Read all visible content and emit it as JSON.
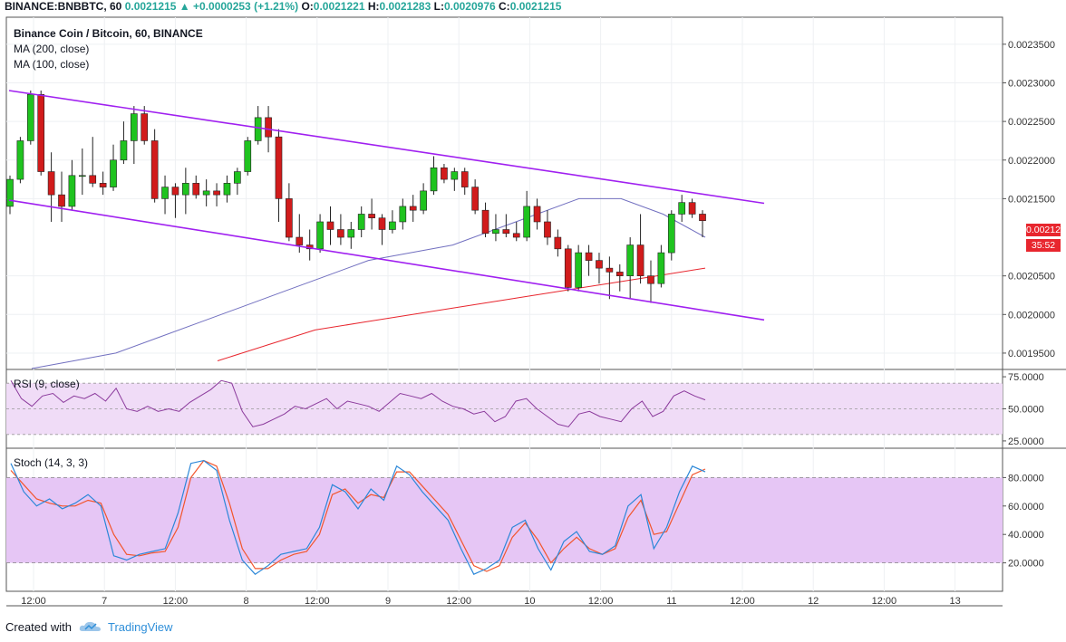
{
  "header": {
    "symbol": "BINANCE:BNBBTC, 60",
    "last": "0.0021215",
    "change_arrow": "▲",
    "change": "+0.0000253 (+1.21%)",
    "o_label": "O:",
    "o_val": "0.0021221",
    "h_label": "H:",
    "h_val": "0.0021283",
    "l_label": "L:",
    "l_val": "0.0020976",
    "c_label": "C:",
    "c_val": "0.0021215"
  },
  "legend": {
    "title": "Binance Coin / Bitcoin, 60, BINANCE",
    "ma200": "MA (200, close)",
    "ma100": "MA (100, close)",
    "rsi": "RSI (9, close)",
    "stoch": "Stoch (14, 3, 3)"
  },
  "price_tag": {
    "price": "0.0021215",
    "countdown": "35:52"
  },
  "footer": {
    "created_with": "Created with",
    "brand": "TradingView",
    "logo_icon": "tradingview-cloud-icon"
  },
  "colors": {
    "up": "#1fc31f",
    "down": "#d11b1b",
    "channel": "#a020f0",
    "ma100": "#7270c0",
    "ma200": "#e8262e",
    "rsi_line": "#8b3a9c",
    "rsi_band": "#f0dcf7",
    "stoch_band": "#e6c6f5",
    "stoch_k": "#2b87d8",
    "stoch_d": "#f2552c",
    "header_green": "#26a69a",
    "brand_blue": "#2f8fd9"
  },
  "chart_data": [
    {
      "type": "candlestick",
      "title": "Binance Coin / Bitcoin, 60, BINANCE",
      "x_tick_labels": [
        "12:00",
        "7",
        "12:00",
        "8",
        "12:00",
        "9",
        "12:00",
        "10",
        "12:00",
        "11",
        "12:00",
        "12",
        "12:00",
        "13"
      ],
      "y_tick_labels": [
        "0.0023500",
        "0.0023000",
        "0.0022500",
        "0.0022000",
        "0.0021500",
        "0.0020500",
        "0.0020000",
        "0.0019500"
      ],
      "ylim": [
        0.00193,
        0.002385
      ],
      "grid": true,
      "candles_approx": [
        [
          0.00214,
          0.00218,
          0.00213,
          0.002175
        ],
        [
          0.002175,
          0.00223,
          0.00217,
          0.002225
        ],
        [
          0.002225,
          0.00229,
          0.00222,
          0.002285
        ],
        [
          0.002285,
          0.00229,
          0.00218,
          0.002185
        ],
        [
          0.002185,
          0.00221,
          0.00212,
          0.002155
        ],
        [
          0.002155,
          0.002185,
          0.00212,
          0.00214
        ],
        [
          0.00214,
          0.0022,
          0.002135,
          0.00218
        ],
        [
          0.00218,
          0.002215,
          0.002155,
          0.00218
        ],
        [
          0.00218,
          0.00223,
          0.002165,
          0.00217
        ],
        [
          0.00217,
          0.002185,
          0.002155,
          0.002165
        ],
        [
          0.002165,
          0.00222,
          0.00216,
          0.0022
        ],
        [
          0.0022,
          0.00225,
          0.002195,
          0.002225
        ],
        [
          0.002225,
          0.00227,
          0.002195,
          0.00226
        ],
        [
          0.00226,
          0.00227,
          0.00222,
          0.002225
        ],
        [
          0.002225,
          0.00224,
          0.002145,
          0.00215
        ],
        [
          0.00215,
          0.00218,
          0.00213,
          0.002165
        ],
        [
          0.002165,
          0.00217,
          0.002125,
          0.002155
        ],
        [
          0.002155,
          0.00219,
          0.00213,
          0.00217
        ],
        [
          0.00217,
          0.00218,
          0.00215,
          0.002155
        ],
        [
          0.002155,
          0.002175,
          0.00214,
          0.00216
        ],
        [
          0.00216,
          0.00217,
          0.00214,
          0.002155
        ],
        [
          0.002155,
          0.00218,
          0.002145,
          0.00217
        ],
        [
          0.00217,
          0.00219,
          0.002155,
          0.002185
        ],
        [
          0.002185,
          0.00223,
          0.00218,
          0.002225
        ],
        [
          0.002225,
          0.00227,
          0.00222,
          0.002255
        ],
        [
          0.002255,
          0.00227,
          0.00221,
          0.00223
        ],
        [
          0.00223,
          0.00224,
          0.00212,
          0.00215
        ],
        [
          0.00215,
          0.00217,
          0.002095,
          0.0021
        ],
        [
          0.0021,
          0.00213,
          0.00208,
          0.00209
        ],
        [
          0.00209,
          0.00211,
          0.00207,
          0.002085
        ],
        [
          0.002085,
          0.00213,
          0.00208,
          0.00212
        ],
        [
          0.00212,
          0.00214,
          0.00209,
          0.00211
        ],
        [
          0.00211,
          0.00213,
          0.00209,
          0.0021
        ],
        [
          0.0021,
          0.00212,
          0.002085,
          0.00211
        ],
        [
          0.00211,
          0.00214,
          0.0021,
          0.00213
        ],
        [
          0.00213,
          0.00215,
          0.00211,
          0.002125
        ],
        [
          0.002125,
          0.00213,
          0.00209,
          0.00211
        ],
        [
          0.00211,
          0.002135,
          0.002105,
          0.00212
        ],
        [
          0.00212,
          0.00215,
          0.00211,
          0.00214
        ],
        [
          0.00214,
          0.002155,
          0.00212,
          0.002135
        ],
        [
          0.002135,
          0.00217,
          0.00213,
          0.00216
        ],
        [
          0.00216,
          0.002205,
          0.002155,
          0.00219
        ],
        [
          0.00219,
          0.002195,
          0.00217,
          0.002175
        ],
        [
          0.002175,
          0.00219,
          0.00216,
          0.002185
        ],
        [
          0.002185,
          0.00219,
          0.002155,
          0.002165
        ],
        [
          0.002165,
          0.002175,
          0.00213,
          0.002135
        ],
        [
          0.002135,
          0.002145,
          0.0021,
          0.002105
        ],
        [
          0.002105,
          0.00213,
          0.002095,
          0.00211
        ],
        [
          0.00211,
          0.00213,
          0.0021,
          0.002105
        ],
        [
          0.002105,
          0.00212,
          0.002095,
          0.0021
        ],
        [
          0.0021,
          0.00216,
          0.002095,
          0.00214
        ],
        [
          0.00214,
          0.00215,
          0.00211,
          0.00212
        ],
        [
          0.00212,
          0.002135,
          0.00209,
          0.0021
        ],
        [
          0.0021,
          0.00211,
          0.002075,
          0.002085
        ],
        [
          0.002085,
          0.00209,
          0.00203,
          0.002035
        ],
        [
          0.002035,
          0.00209,
          0.00203,
          0.00208
        ],
        [
          0.00208,
          0.00209,
          0.00205,
          0.00207
        ],
        [
          0.00207,
          0.00208,
          0.00204,
          0.00206
        ],
        [
          0.00206,
          0.002075,
          0.00202,
          0.002055
        ],
        [
          0.002055,
          0.002065,
          0.00203,
          0.00205
        ],
        [
          0.00205,
          0.0021,
          0.00202,
          0.00209
        ],
        [
          0.00209,
          0.00213,
          0.00204,
          0.00205
        ],
        [
          0.00205,
          0.00207,
          0.002015,
          0.00204
        ],
        [
          0.00204,
          0.00209,
          0.002035,
          0.00208
        ],
        [
          0.00208,
          0.002135,
          0.00207,
          0.00213
        ],
        [
          0.00213,
          0.002155,
          0.00212,
          0.002145
        ],
        [
          0.002145,
          0.00215,
          0.002125,
          0.00213
        ],
        [
          0.00213,
          0.002135,
          0.0021,
          0.0021215
        ]
      ],
      "ma100_approx": [
        0.00193,
        0.00194,
        0.00195,
        0.00197,
        0.00199,
        0.00201,
        0.00203,
        0.00205,
        0.00207,
        0.00208,
        0.00209,
        0.00211,
        0.00213,
        0.00215,
        0.00215,
        0.00213,
        0.0021
      ],
      "ma200_approx": [
        0.00194,
        0.00196,
        0.00198,
        0.00199,
        0.002,
        0.00201,
        0.00202,
        0.00203,
        0.00204,
        0.00205,
        0.00206
      ],
      "channel_upper": [
        [
          0.00229
        ],
        [
          0.002144
        ]
      ],
      "channel_lower": [
        [
          0.002148
        ],
        [
          0.001993
        ]
      ]
    },
    {
      "type": "line",
      "title": "RSI (9, close)",
      "y_tick_labels": [
        "75.0000",
        "50.0000",
        "25.0000"
      ],
      "ylim": [
        20,
        80
      ],
      "band": [
        30,
        70
      ],
      "values_approx": [
        72,
        58,
        52,
        60,
        62,
        55,
        60,
        58,
        62,
        56,
        66,
        50,
        48,
        52,
        48,
        50,
        48,
        55,
        60,
        65,
        72,
        70,
        48,
        36,
        38,
        42,
        46,
        52,
        50,
        54,
        58,
        50,
        56,
        54,
        52,
        48,
        55,
        62,
        60,
        58,
        62,
        56,
        52,
        50,
        46,
        48,
        40,
        44,
        56,
        58,
        50,
        44,
        38,
        36,
        46,
        48,
        44,
        42,
        40,
        50,
        56,
        44,
        48,
        60,
        64,
        60,
        57
      ]
    },
    {
      "type": "line",
      "title": "Stoch (14, 3, 3)",
      "y_tick_labels": [
        "80.0000",
        "60.0000",
        "40.0000",
        "20.0000"
      ],
      "ylim": [
        0,
        100
      ],
      "band": [
        20,
        80
      ],
      "series": [
        {
          "values_approx": [
            90,
            70,
            60,
            65,
            58,
            62,
            68,
            60,
            25,
            22,
            26,
            28,
            30,
            55,
            90,
            92,
            85,
            50,
            22,
            12,
            18,
            26,
            28,
            30,
            45,
            75,
            70,
            58,
            72,
            64,
            88,
            82,
            70,
            60,
            50,
            30,
            12,
            16,
            22,
            45,
            50,
            30,
            15,
            35,
            42,
            28,
            26,
            32,
            60,
            68,
            30,
            45,
            70,
            88,
            84
          ]
        },
        {
          "values_approx": [
            85,
            75,
            65,
            62,
            60,
            60,
            64,
            62,
            40,
            26,
            25,
            27,
            28,
            45,
            80,
            92,
            88,
            62,
            30,
            16,
            16,
            22,
            26,
            28,
            40,
            68,
            72,
            62,
            68,
            66,
            84,
            84,
            74,
            64,
            54,
            36,
            18,
            14,
            18,
            38,
            48,
            36,
            20,
            30,
            38,
            30,
            26,
            30,
            52,
            64,
            40,
            42,
            62,
            82,
            86
          ]
        }
      ]
    }
  ]
}
